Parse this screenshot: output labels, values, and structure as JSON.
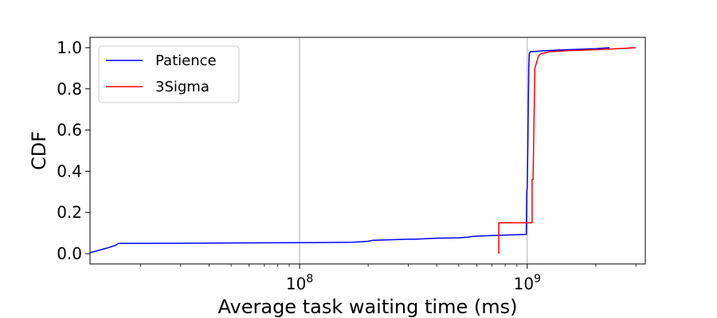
{
  "chart_data": {
    "type": "line",
    "title": "",
    "xlabel": "Average task waiting time (ms)",
    "ylabel": "CDF",
    "xscale": "log",
    "xlim": [
      12000000,
      3300000000
    ],
    "ylim": [
      -0.05,
      1.05
    ],
    "xticks": [
      {
        "value": 100000000,
        "base": "10",
        "exp": "8"
      },
      {
        "value": 1000000000,
        "base": "10",
        "exp": "9"
      }
    ],
    "yticks": [
      {
        "value": 0.0,
        "label": "0.0"
      },
      {
        "value": 0.2,
        "label": "0.2"
      },
      {
        "value": 0.4,
        "label": "0.4"
      },
      {
        "value": 0.6,
        "label": "0.6"
      },
      {
        "value": 0.8,
        "label": "0.8"
      },
      {
        "value": 1.0,
        "label": "1.0"
      }
    ],
    "grid": "x-major",
    "legend_position": "top-left",
    "series": [
      {
        "name": "Patience",
        "color": "#0000ff",
        "x": [
          12000000,
          12500000,
          13000000,
          13500000,
          14000000,
          14500000,
          15000000,
          15500000,
          16000000,
          20000000,
          40000000,
          100000000,
          170000000,
          200000000,
          210000000,
          300000000,
          320000000,
          400000000,
          500000000,
          550000000,
          570000000,
          600000000,
          700000000,
          800000000,
          900000000,
          990000000,
          995000000,
          1000000000,
          1005000000,
          1010000000,
          1015000000,
          1020000000,
          1030000000,
          1200000000,
          1500000000,
          2000000000,
          2300000000
        ],
        "y": [
          0.005,
          0.01,
          0.015,
          0.02,
          0.025,
          0.03,
          0.035,
          0.04,
          0.05,
          0.05,
          0.051,
          0.053,
          0.055,
          0.06,
          0.065,
          0.07,
          0.07,
          0.075,
          0.077,
          0.08,
          0.083,
          0.085,
          0.088,
          0.09,
          0.092,
          0.093,
          0.3,
          0.32,
          0.5,
          0.7,
          0.9,
          0.97,
          0.98,
          0.985,
          0.99,
          0.995,
          1.0
        ]
      },
      {
        "name": "3Sigma",
        "color": "#ff0000",
        "x": [
          750000000,
          750000000,
          760000000,
          760000000,
          1020000000,
          1030000000,
          1050000000,
          1050000000,
          1060000000,
          1080000000,
          1100000000,
          1120000000,
          1150000000,
          1200000000,
          1250000000,
          1500000000,
          2000000000,
          2500000000,
          3000000000
        ],
        "y": [
          0.0,
          0.15,
          0.15,
          0.15,
          0.15,
          0.15,
          0.15,
          0.36,
          0.36,
          0.9,
          0.93,
          0.96,
          0.97,
          0.975,
          0.98,
          0.985,
          0.99,
          0.995,
          1.0
        ]
      }
    ]
  }
}
